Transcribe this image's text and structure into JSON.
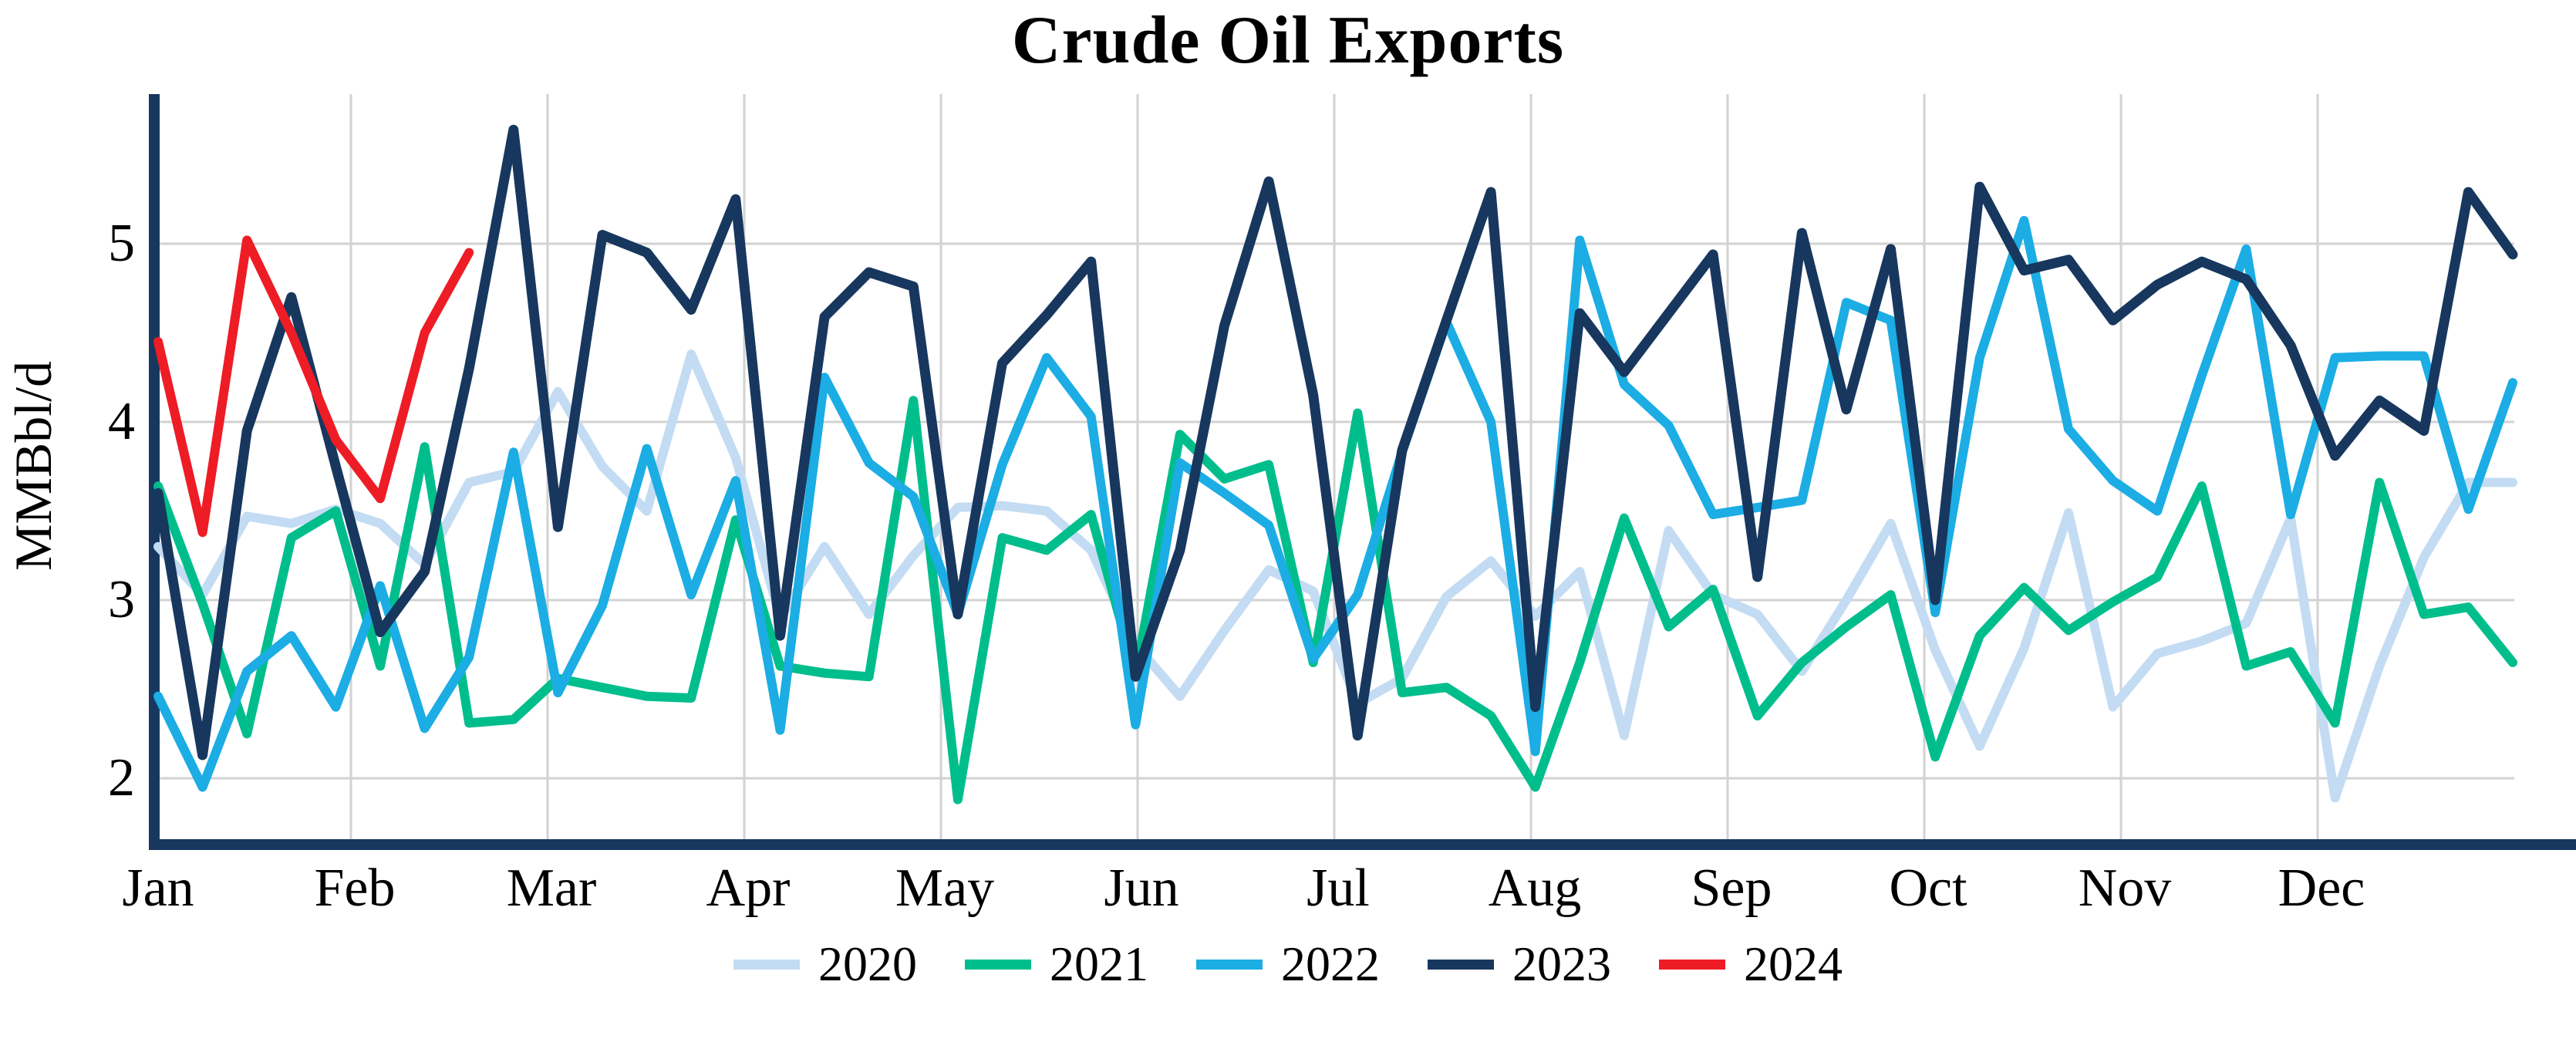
{
  "chart_data": {
    "type": "line",
    "title": "Crude Oil Exports",
    "ylabel": "MMBbl/d",
    "grid": true,
    "legend_position": "bottom",
    "x_axis": {
      "tick_labels": [
        "Jan",
        "Feb",
        "Mar",
        "Apr",
        "May",
        "Jun",
        "Jul",
        "Aug",
        "Sep",
        "Oct",
        "Nov",
        "Dec"
      ],
      "points_per_year": 54,
      "note": "weekly data points"
    },
    "y_axis": {
      "ticks": [
        2,
        3,
        4,
        5
      ],
      "top_value": 5.84,
      "bottom_value": 1.66
    },
    "series": [
      {
        "name": "2020",
        "color": "#C3DCF3",
        "values": [
          3.3,
          3.03,
          3.47,
          3.43,
          3.51,
          3.43,
          3.2,
          3.66,
          3.72,
          4.17,
          3.75,
          3.5,
          4.38,
          3.8,
          2.9,
          3.3,
          2.92,
          3.25,
          3.52,
          3.53,
          3.5,
          3.28,
          2.75,
          2.46,
          2.83,
          3.17,
          3.05,
          2.42,
          2.56,
          3.02,
          3.22,
          2.91,
          3.16,
          2.24,
          3.39,
          3.03,
          2.92,
          2.6,
          3.0,
          3.43,
          2.72,
          2.18,
          2.73,
          3.49,
          2.4,
          2.7,
          2.77,
          2.87,
          3.46,
          1.89,
          2.63,
          3.24,
          3.66,
          3.66
        ]
      },
      {
        "name": "2021",
        "color": "#00BE8C",
        "values": [
          3.64,
          2.98,
          2.25,
          3.35,
          3.5,
          2.63,
          3.86,
          2.31,
          2.33,
          2.56,
          2.51,
          2.46,
          2.45,
          3.45,
          2.63,
          2.59,
          2.57,
          4.12,
          1.88,
          3.35,
          3.28,
          3.48,
          2.58,
          3.93,
          3.68,
          3.76,
          2.65,
          4.05,
          2.48,
          2.51,
          2.35,
          1.95,
          2.65,
          3.46,
          2.85,
          3.06,
          2.35,
          2.65,
          2.85,
          3.03,
          2.12,
          2.8,
          3.07,
          2.83,
          2.99,
          3.13,
          3.64,
          2.63,
          2.71,
          2.31,
          3.66,
          2.92,
          2.96,
          2.65
        ]
      },
      {
        "name": "2022",
        "color": "#1BADE4",
        "values": [
          2.46,
          1.95,
          2.6,
          2.8,
          2.4,
          3.08,
          2.28,
          2.68,
          3.83,
          2.48,
          2.97,
          3.85,
          3.03,
          3.67,
          2.27,
          4.25,
          3.77,
          3.58,
          2.92,
          3.76,
          4.36,
          4.03,
          2.3,
          3.77,
          3.6,
          3.42,
          2.67,
          3.03,
          3.83,
          4.56,
          4.0,
          2.15,
          5.02,
          4.21,
          3.98,
          3.48,
          3.52,
          3.56,
          4.67,
          4.57,
          2.93,
          4.36,
          5.13,
          3.96,
          3.67,
          3.5,
          4.26,
          4.97,
          3.48,
          4.36,
          4.37,
          4.37,
          3.51,
          4.22
        ]
      },
      {
        "name": "2023",
        "color": "#17375E",
        "values": [
          3.6,
          2.13,
          3.95,
          4.7,
          3.75,
          2.82,
          3.16,
          4.3,
          5.64,
          3.41,
          5.05,
          4.95,
          4.63,
          5.25,
          2.8,
          4.59,
          4.84,
          4.76,
          2.92,
          4.33,
          4.6,
          4.9,
          2.57,
          3.28,
          4.54,
          5.35,
          4.15,
          2.24,
          3.84,
          4.57,
          5.29,
          2.4,
          4.61,
          4.28,
          4.61,
          4.94,
          3.13,
          5.06,
          4.07,
          4.97,
          3.0,
          5.32,
          4.85,
          4.91,
          4.57,
          4.77,
          4.9,
          4.8,
          4.43,
          3.81,
          4.12,
          3.95,
          5.29,
          4.94
        ]
      },
      {
        "name": "2024",
        "color": "#EE1C25",
        "values": [
          4.45,
          3.38,
          5.02,
          4.5,
          3.9,
          3.57,
          4.5,
          4.95
        ]
      }
    ]
  },
  "colors": {
    "axis": "#17375E",
    "gridline": "#D2D2D2",
    "background": "#FFFFFF",
    "text": "#000000"
  }
}
